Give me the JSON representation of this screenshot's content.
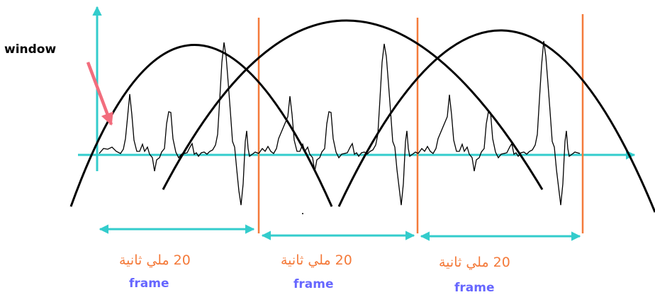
{
  "colors": {
    "axis": "#33CCCC",
    "frame_boundary": "#F47A3A",
    "window_arrow": "#F26D7D",
    "window_label": "#000000",
    "duration_text": "#F47A3A",
    "frame_text": "#6666FF",
    "curve": "#000000",
    "signal": "#000000"
  },
  "labels": {
    "window": "window"
  },
  "frames": [
    {
      "duration": "20 ملي ثانية",
      "name": "frame"
    },
    {
      "duration": "20 ملي ثانية",
      "name": "frame"
    },
    {
      "duration": "20 ملي ثانية",
      "name": "frame"
    }
  ]
}
